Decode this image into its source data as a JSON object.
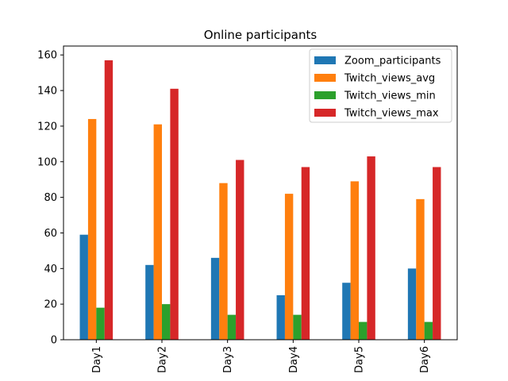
{
  "chart_data": {
    "type": "bar",
    "title": "Online participants",
    "xlabel": "",
    "ylabel": "",
    "categories": [
      "Day1",
      "Day2",
      "Day3",
      "Day4",
      "Day5",
      "Day6"
    ],
    "ylim": [
      0,
      165
    ],
    "yticks": [
      0,
      20,
      40,
      60,
      80,
      100,
      120,
      140,
      160
    ],
    "legend_position": "top-right",
    "grid": false,
    "series": [
      {
        "name": "Zoom_participants",
        "color": "#1f77b4",
        "values": [
          59,
          42,
          46,
          25,
          32,
          40
        ]
      },
      {
        "name": "Twitch_views_avg",
        "color": "#ff7f0e",
        "values": [
          124,
          121,
          88,
          82,
          89,
          79
        ]
      },
      {
        "name": "Twitch_views_min",
        "color": "#2ca02c",
        "values": [
          18,
          20,
          14,
          14,
          10,
          10
        ]
      },
      {
        "name": "Twitch_views_max",
        "color": "#d62728",
        "values": [
          157,
          141,
          101,
          97,
          103,
          97
        ]
      }
    ]
  }
}
